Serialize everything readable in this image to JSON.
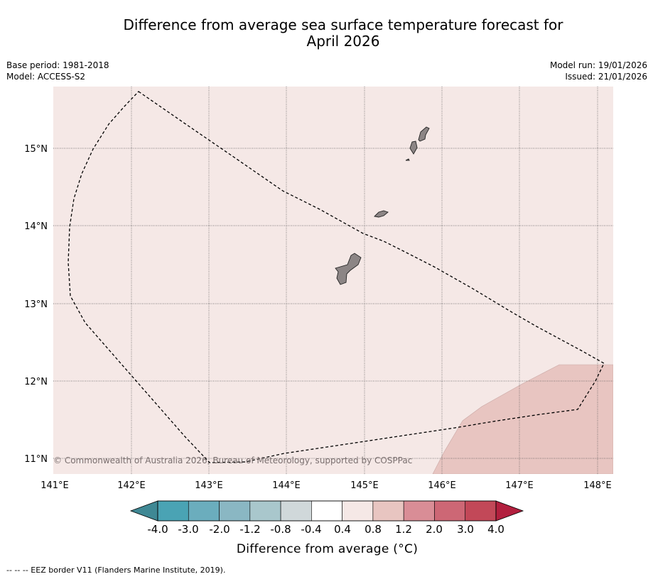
{
  "header": {
    "title_line1": "Difference from average sea surface temperature forecast for",
    "title_line2": "April 2026",
    "base_period": "Base period: 1981-2018",
    "model": "Model: ACCESS-S2",
    "model_run": "Model run: 19/01/2026",
    "issued": "Issued: 21/01/2026"
  },
  "map": {
    "lon_ticks": [
      "141°E",
      "142°E",
      "143°E",
      "144°E",
      "145°E",
      "146°E",
      "147°E",
      "148°E"
    ],
    "lat_ticks": [
      "15°N",
      "14°N",
      "13°N",
      "12°N",
      "11°N"
    ],
    "background_category": "0.4 to 0.8",
    "warm_region_category": "0.8 to 1.2",
    "copyright": "© Commonwealth of Australia 2026, Bureau of Meteorology, supported by COSPPac",
    "land_color": "#8c8585",
    "eez_line_color": "#000000"
  },
  "colorbar": {
    "labels": [
      "-4.0",
      "-3.0",
      "-2.0",
      "-1.2",
      "-0.8",
      "-0.4",
      "0.4",
      "0.8",
      "1.2",
      "2.0",
      "3.0",
      "4.0"
    ],
    "colors": [
      "#4aa3b4",
      "#6badbd",
      "#8ab7c3",
      "#a9c7cc",
      "#d0d8da",
      "#ffffff",
      "#f5e8e6",
      "#e8c5c1",
      "#d98d96",
      "#cd6775",
      "#c24858"
    ],
    "under_color": "#3f8894",
    "over_color": "#b21f3e",
    "title": "Difference from average (°C)"
  },
  "footnote": "--  --  -- EEZ border V11 (Flanders Marine Institute, 2019)."
}
